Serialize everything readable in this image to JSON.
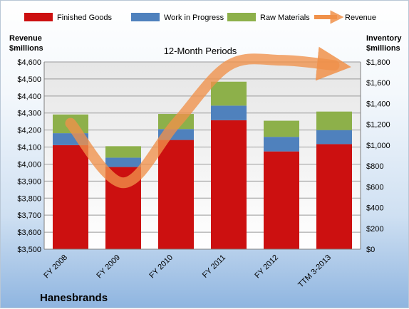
{
  "chart_data": {
    "type": "bar",
    "subtitle": "12-Month Periods",
    "company": "Hanesbrands",
    "categories": [
      "FY 2008",
      "FY 2009",
      "FY 2010",
      "FY 2011",
      "FY 2012",
      "TTM 3-2013"
    ],
    "left_axis": {
      "label_line1": "Revenue",
      "label_line2": "$millions",
      "ylim": [
        3500,
        4600
      ],
      "ticks": [
        "$3,500",
        "$3,600",
        "$3,700",
        "$3,800",
        "$3,900",
        "$4,000",
        "$4,100",
        "$4,200",
        "$4,300",
        "$4,400",
        "$4,500",
        "$4,600"
      ]
    },
    "right_axis": {
      "label_line1": "Inventory",
      "label_line2": "$millions",
      "ylim": [
        0,
        1800
      ],
      "ticks": [
        "$0",
        "$200",
        "$400",
        "$600",
        "$800",
        "$1,000",
        "$1,200",
        "$1,400",
        "$1,600",
        "$1,800"
      ]
    },
    "series": [
      {
        "name": "Finished Goods",
        "axis": "right",
        "stack": true,
        "color": "#cc1010",
        "values": [
          1000,
          790,
          1050,
          1240,
          940,
          1010
        ]
      },
      {
        "name": "Work in Progress",
        "axis": "right",
        "stack": true,
        "color": "#4f81bd",
        "values": [
          115,
          90,
          105,
          140,
          140,
          135
        ]
      },
      {
        "name": "Raw Materials",
        "axis": "right",
        "stack": true,
        "color": "#8db04a",
        "values": [
          180,
          110,
          145,
          230,
          155,
          178
        ]
      },
      {
        "name": "Revenue",
        "axis": "left",
        "type": "line",
        "color": "#f0914a",
        "values": [
          4240,
          3890,
          4240,
          4580,
          4610,
          4580
        ]
      }
    ],
    "grid": true,
    "legend_position": "top"
  }
}
